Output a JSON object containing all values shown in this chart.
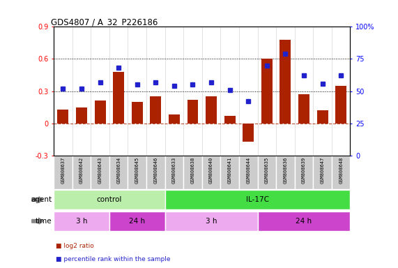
{
  "title": "GDS4807 / A_32_P226186",
  "samples": [
    "GSM808637",
    "GSM808642",
    "GSM808643",
    "GSM808634",
    "GSM808645",
    "GSM808646",
    "GSM808633",
    "GSM808638",
    "GSM808640",
    "GSM808641",
    "GSM808644",
    "GSM808635",
    "GSM808636",
    "GSM808639",
    "GSM808647",
    "GSM808648"
  ],
  "log2_ratio": [
    0.13,
    0.15,
    0.21,
    0.48,
    0.2,
    0.25,
    0.08,
    0.22,
    0.25,
    0.07,
    -0.17,
    0.6,
    0.78,
    0.27,
    0.12,
    0.35
  ],
  "percentile": [
    52,
    52,
    57,
    68,
    55,
    57,
    54,
    55,
    57,
    51,
    42,
    70,
    79,
    62,
    56,
    62
  ],
  "bar_color": "#aa2200",
  "dot_color": "#2222cc",
  "ylim_left": [
    -0.3,
    0.9
  ],
  "ylim_right": [
    0,
    100
  ],
  "yticks_left": [
    -0.3,
    0.0,
    0.3,
    0.6,
    0.9
  ],
  "yticks_right": [
    0,
    25,
    50,
    75,
    100
  ],
  "hlines": [
    0.3,
    0.6
  ],
  "agent_groups": [
    {
      "label": "control",
      "start": 0,
      "end": 6,
      "color": "#bbeeaa"
    },
    {
      "label": "IL-17C",
      "start": 6,
      "end": 16,
      "color": "#44dd44"
    }
  ],
  "time_groups": [
    {
      "label": "3 h",
      "start": 0,
      "end": 3,
      "color": "#eeaaee"
    },
    {
      "label": "24 h",
      "start": 3,
      "end": 6,
      "color": "#cc44cc"
    },
    {
      "label": "3 h",
      "start": 6,
      "end": 11,
      "color": "#eeaaee"
    },
    {
      "label": "24 h",
      "start": 11,
      "end": 16,
      "color": "#cc44cc"
    }
  ],
  "legend_items": [
    {
      "label": "log2 ratio",
      "color": "#aa2200"
    },
    {
      "label": "percentile rank within the sample",
      "color": "#2222cc"
    }
  ],
  "bg_color": "#ffffff",
  "label_bg": "#cccccc",
  "sample_box_bg": "#cccccc"
}
